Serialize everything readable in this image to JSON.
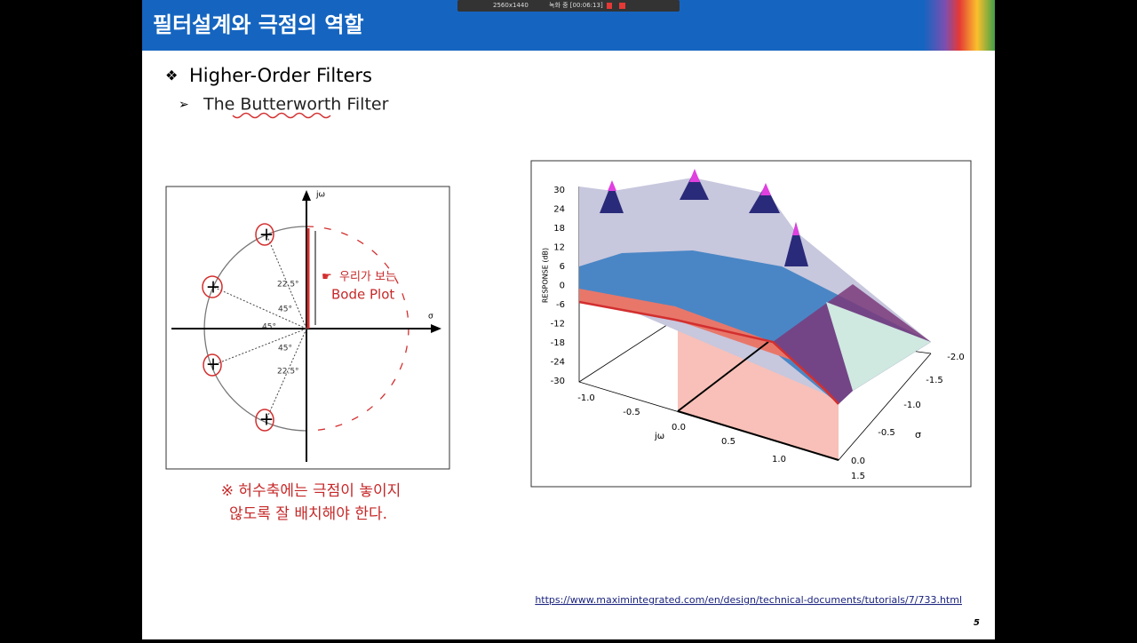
{
  "toolbar": {
    "resolution": "2560x1440",
    "status": "녹화 중 [00:06:13]"
  },
  "slide": {
    "title": "필터설계와 극점의 역할",
    "bullet": "Higher-Order Filters",
    "sub_bullet": "The Butterworth Filter",
    "pole_diagram": {
      "y_axis": "jω",
      "x_axis": "σ",
      "angles": [
        "22.5°",
        "45°",
        "45°",
        "45°",
        "22.5°"
      ],
      "annotation": [
        "우리가 보는",
        "Bode Plot"
      ]
    },
    "note": [
      "※ 허수축에는 극점이 놓이지",
      "않도록 잘 배치해야 한다."
    ],
    "surface_plot": {
      "z_label": "RESPONSE (dB)",
      "z_ticks": [
        "30",
        "24",
        "18",
        "12",
        "6",
        "0",
        "-6",
        "-12",
        "-18",
        "-24",
        "-30"
      ],
      "jw_label": "jω",
      "jw_ticks": [
        "-1.0",
        "-0.5",
        "0.0",
        "0.5",
        "1.0",
        "1.5"
      ],
      "sigma_label": "σ",
      "sigma_ticks": [
        "-2.0",
        "-1.5",
        "-1.0",
        "-0.5",
        "0.0"
      ]
    },
    "source": "https://www.maximintegrated.com/en/design/technical-documents/tutorials/7/733.html",
    "page": "5"
  }
}
